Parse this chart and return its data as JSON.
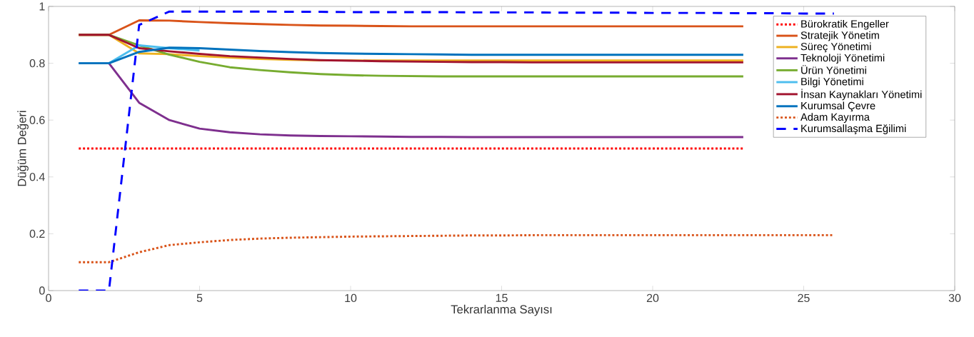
{
  "chart_data": {
    "type": "line",
    "xlabel": "Tekrarlanma Sayısı",
    "ylabel": "Düğüm Değeri",
    "x": [
      1,
      2,
      3,
      4,
      5,
      6,
      7,
      8,
      9,
      10,
      11,
      12,
      13,
      14,
      15,
      16,
      17,
      18,
      19,
      20,
      21,
      22,
      23,
      24,
      25,
      26
    ],
    "xlim": [
      0,
      30
    ],
    "xticks": [
      0,
      5,
      10,
      15,
      20,
      25,
      30
    ],
    "ylim": [
      0,
      1
    ],
    "yticks": [
      0,
      0.2,
      0.4,
      0.6,
      0.8,
      1
    ],
    "legend": "top right",
    "series": [
      {
        "name": "Bürokratik Engeller",
        "color": "#ff0000",
        "line_style": "dotted",
        "values": [
          0.5,
          0.5,
          0.5,
          0.5,
          0.5,
          0.5,
          0.5,
          0.5,
          0.5,
          0.5,
          0.5,
          0.5,
          0.5,
          0.5,
          0.5,
          0.5,
          0.5,
          0.5,
          0.5,
          0.5,
          0.5,
          0.5,
          0.5,
          null,
          null,
          null
        ]
      },
      {
        "name": "Stratejik Yönetim",
        "color": "#d95319",
        "line_style": "solid",
        "values": [
          0.9,
          0.9,
          0.951,
          0.95,
          0.945,
          0.941,
          0.938,
          0.935,
          0.933,
          0.932,
          0.931,
          0.93,
          0.93,
          0.93,
          0.93,
          0.93,
          0.93,
          0.93,
          0.93,
          0.93,
          0.93,
          0.93,
          0.93,
          null,
          null,
          null
        ]
      },
      {
        "name": "Süreç Yönetimi",
        "color": "#edb120",
        "line_style": "solid",
        "values": [
          0.9,
          0.9,
          0.835,
          0.832,
          0.825,
          0.82,
          0.815,
          0.812,
          0.81,
          0.81,
          0.81,
          0.81,
          0.81,
          0.81,
          0.81,
          0.81,
          0.81,
          0.81,
          0.81,
          0.81,
          0.81,
          0.81,
          0.81,
          null,
          null,
          null
        ]
      },
      {
        "name": "Teknoloji Yönetimi",
        "color": "#7e2f8e",
        "line_style": "solid",
        "values": [
          0.8,
          0.8,
          0.661,
          0.6,
          0.57,
          0.557,
          0.55,
          0.546,
          0.544,
          0.543,
          0.542,
          0.541,
          0.541,
          0.54,
          0.54,
          0.54,
          0.54,
          0.54,
          0.54,
          0.54,
          0.54,
          0.54,
          0.54,
          null,
          null,
          null
        ]
      },
      {
        "name": "Ürün Yönetimi",
        "color": "#77ac30",
        "line_style": "solid",
        "values": [
          0.9,
          0.9,
          0.863,
          0.83,
          0.805,
          0.786,
          0.776,
          0.768,
          0.762,
          0.758,
          0.756,
          0.755,
          0.754,
          0.754,
          0.754,
          0.754,
          0.754,
          0.754,
          0.754,
          0.754,
          0.754,
          0.754,
          0.754,
          null,
          null,
          null
        ]
      },
      {
        "name": "Bilgi Yönetimi",
        "color": "#4dbeee",
        "line_style": "solid",
        "values": [
          0.8,
          0.8,
          0.863,
          0.853,
          0.845,
          null,
          null,
          null,
          null,
          null,
          null,
          null,
          null,
          null,
          null,
          null,
          null,
          null,
          null,
          null,
          null,
          null,
          null,
          null,
          null,
          null
        ]
      },
      {
        "name": "İnsan Kaynakları Yönetimi",
        "color": "#a2142f",
        "line_style": "solid",
        "values": [
          0.9,
          0.9,
          0.853,
          0.842,
          0.833,
          0.825,
          0.82,
          0.815,
          0.811,
          0.809,
          0.807,
          0.806,
          0.805,
          0.804,
          0.804,
          0.803,
          0.803,
          0.803,
          0.803,
          0.803,
          0.803,
          0.803,
          0.803,
          null,
          null,
          null
        ]
      },
      {
        "name": "Kurumsal Çevre",
        "color": "#0072bd",
        "line_style": "solid",
        "values": [
          0.8,
          0.8,
          0.84,
          0.855,
          0.853,
          0.848,
          0.843,
          0.839,
          0.836,
          0.834,
          0.833,
          0.832,
          0.831,
          0.83,
          0.83,
          0.83,
          0.83,
          0.83,
          0.83,
          0.83,
          0.83,
          0.83,
          0.83,
          null,
          null,
          null
        ]
      },
      {
        "name": "Adam Kayırma",
        "color": "#d95319",
        "line_style": "dotted",
        "values": [
          0.1,
          0.1,
          0.135,
          0.16,
          0.17,
          0.178,
          0.183,
          0.186,
          0.188,
          0.19,
          0.191,
          0.192,
          0.193,
          0.194,
          0.194,
          0.195,
          0.195,
          0.195,
          0.195,
          0.195,
          0.195,
          0.195,
          0.195,
          0.195,
          0.195,
          0.195
        ]
      },
      {
        "name": "Kurumsallaşma Eğilimi",
        "color": "#0000ff",
        "line_style": "dashed",
        "values": [
          0,
          0,
          0.935,
          0.982,
          0.982,
          0.982,
          0.982,
          0.981,
          0.981,
          0.98,
          0.98,
          0.98,
          0.98,
          0.979,
          0.979,
          0.979,
          0.978,
          0.978,
          0.978,
          0.977,
          0.977,
          0.977,
          0.976,
          0.976,
          0.975,
          0.975
        ]
      }
    ]
  }
}
